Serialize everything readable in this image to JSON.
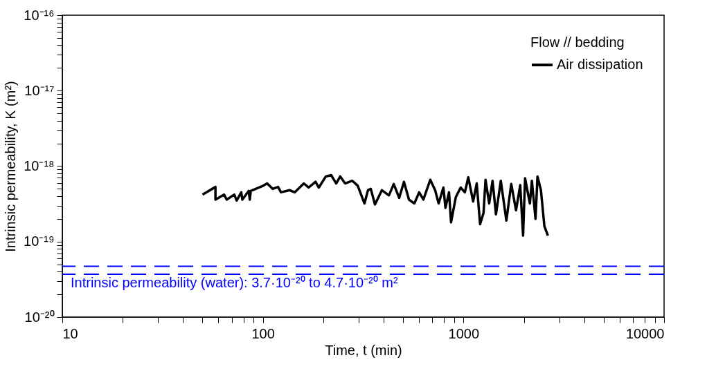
{
  "chart_data": {
    "type": "line",
    "xlabel": "Time, t (min)",
    "ylabel": "Intrinsic permeability, K (m²)",
    "legend_title": "Flow // bedding",
    "legend": "top right",
    "log": "xy",
    "grid": false,
    "line_style": "solid",
    "marker": "none",
    "xlim": [
      10,
      10000
    ],
    "ylim": [
      1e-20,
      1e-16
    ],
    "xticks": [
      10,
      {
        "value": 20,
        "label": null
      },
      {
        "value": 30,
        "label": null
      },
      {
        "value": 40,
        "label": null
      },
      {
        "value": 50,
        "label": null
      },
      {
        "value": 60,
        "label": null
      },
      {
        "value": 70,
        "label": null
      },
      {
        "value": 80,
        "label": null
      },
      {
        "value": 90,
        "label": null
      },
      100,
      {
        "value": 200,
        "label": null
      },
      {
        "value": 300,
        "label": null
      },
      {
        "value": 400,
        "label": null
      },
      {
        "value": 500,
        "label": null
      },
      {
        "value": 600,
        "label": null
      },
      {
        "value": 700,
        "label": null
      },
      {
        "value": 800,
        "label": null
      },
      {
        "value": 900,
        "label": null
      },
      1000,
      {
        "value": 2000,
        "label": null
      },
      {
        "value": 3000,
        "label": null
      },
      {
        "value": 4000,
        "label": null
      },
      {
        "value": 5000,
        "label": null
      },
      {
        "value": 6000,
        "label": null
      },
      {
        "value": 7000,
        "label": null
      },
      {
        "value": 8000,
        "label": null
      },
      {
        "value": 9000,
        "label": null
      },
      10000
    ],
    "yticks": [
      {
        "value": 1e-20,
        "label": "10⁻²⁰"
      },
      {
        "value": 2e-20,
        "label": null
      },
      {
        "value": 3e-20,
        "label": null
      },
      {
        "value": 4e-20,
        "label": null
      },
      {
        "value": 5e-20,
        "label": null
      },
      {
        "value": 6e-20,
        "label": null
      },
      {
        "value": 7e-20,
        "label": null
      },
      {
        "value": 8e-20,
        "label": null
      },
      {
        "value": 9e-20,
        "label": null
      },
      {
        "value": 1e-19,
        "label": "10⁻¹⁹"
      },
      {
        "value": 2e-19,
        "label": null
      },
      {
        "value": 3e-19,
        "label": null
      },
      {
        "value": 4e-19,
        "label": null
      },
      {
        "value": 5e-19,
        "label": null
      },
      {
        "value": 6e-19,
        "label": null
      },
      {
        "value": 7e-19,
        "label": null
      },
      {
        "value": 8e-19,
        "label": null
      },
      {
        "value": 9e-19,
        "label": null
      },
      {
        "value": 1e-18,
        "label": "10⁻¹⁸"
      },
      {
        "value": 2e-18,
        "label": null
      },
      {
        "value": 3e-18,
        "label": null
      },
      {
        "value": 4e-18,
        "label": null
      },
      {
        "value": 5e-18,
        "label": null
      },
      {
        "value": 6e-18,
        "label": null
      },
      {
        "value": 7e-18,
        "label": null
      },
      {
        "value": 8e-18,
        "label": null
      },
      {
        "value": 9e-18,
        "label": null
      },
      {
        "value": 1e-17,
        "label": "10⁻¹⁷"
      },
      {
        "value": 2e-17,
        "label": null
      },
      {
        "value": 3e-17,
        "label": null
      },
      {
        "value": 4e-17,
        "label": null
      },
      {
        "value": 5e-17,
        "label": null
      },
      {
        "value": 6e-17,
        "label": null
      },
      {
        "value": 7e-17,
        "label": null
      },
      {
        "value": 8e-17,
        "label": null
      },
      {
        "value": 9e-17,
        "label": null
      },
      {
        "value": 1e-16,
        "label": "10⁻¹⁶"
      }
    ],
    "ref_lines": [
      {
        "axis": "y",
        "value": 4.7e-20,
        "color": "#0000ff",
        "line_style": "dashed"
      },
      {
        "axis": "y",
        "value": 3.7e-20,
        "color": "#0000ff",
        "line_style": "dashed"
      }
    ],
    "annotations": [
      "Intrinsic permeability (water): 3.7·10⁻²⁰ to 4.7·10⁻²⁰ m²"
    ],
    "series": [
      {
        "name": "Air dissipation",
        "color": "#000000",
        "x": [
          50,
          58,
          58,
          64,
          66,
          72,
          74,
          78,
          79,
          85,
          86,
          87,
          99,
          105,
          112,
          119,
          123,
          136,
          144,
          160,
          169,
          183,
          190,
          206,
          219,
          232,
          243,
          257,
          279,
          297,
          321,
          334,
          345,
          362,
          392,
          425,
          449,
          478,
          505,
          535,
          569,
          601,
          631,
          683,
          722,
          752,
          794,
          813,
          847,
          867,
          916,
          968,
          1016,
          1057,
          1117,
          1164,
          1210,
          1259,
          1288,
          1343,
          1396,
          1452,
          1535,
          1636,
          1730,
          1828,
          1918,
          1982,
          2028,
          2143,
          2193,
          2286,
          2339,
          2433,
          2531,
          2636
        ],
        "values": [
          4.2e-19,
          5.3e-19,
          3.6e-19,
          4.2e-19,
          3.6e-19,
          4.2e-19,
          3.5e-19,
          4.5e-19,
          3.6e-19,
          4.7e-19,
          3.6e-19,
          4.7e-19,
          5.4e-19,
          5.9e-19,
          5e-19,
          5.3e-19,
          4.5e-19,
          4.8e-19,
          4.5e-19,
          5.9e-19,
          5.2e-19,
          6.2e-19,
          5.2e-19,
          7.3e-19,
          7.6e-19,
          5.9e-19,
          7.3e-19,
          5.9e-19,
          6.4e-19,
          5.5e-19,
          3.2e-19,
          4.8e-19,
          5e-19,
          3.1e-19,
          4.8e-19,
          4.1e-19,
          5.8e-19,
          3.8e-19,
          6.2e-19,
          3.6e-19,
          3.2e-19,
          4.5e-19,
          3.6e-19,
          6.6e-19,
          4.8e-19,
          3.2e-19,
          5.2e-19,
          2.8e-19,
          4.5e-19,
          1.8e-19,
          3.9e-19,
          5.2e-19,
          4.5e-19,
          7.1e-19,
          3.4e-19,
          5.9e-19,
          1.7e-19,
          2.4e-19,
          6.6e-19,
          3.2e-19,
          6.4e-19,
          2.3e-19,
          6.4e-19,
          1.9e-19,
          5.8e-19,
          2.6e-19,
          5.6e-19,
          1.2e-19,
          6.9e-19,
          3.2e-19,
          6.4e-19,
          2e-19,
          7.3e-19,
          4.8e-19,
          1.6e-19,
          1.2e-19
        ]
      }
    ]
  }
}
